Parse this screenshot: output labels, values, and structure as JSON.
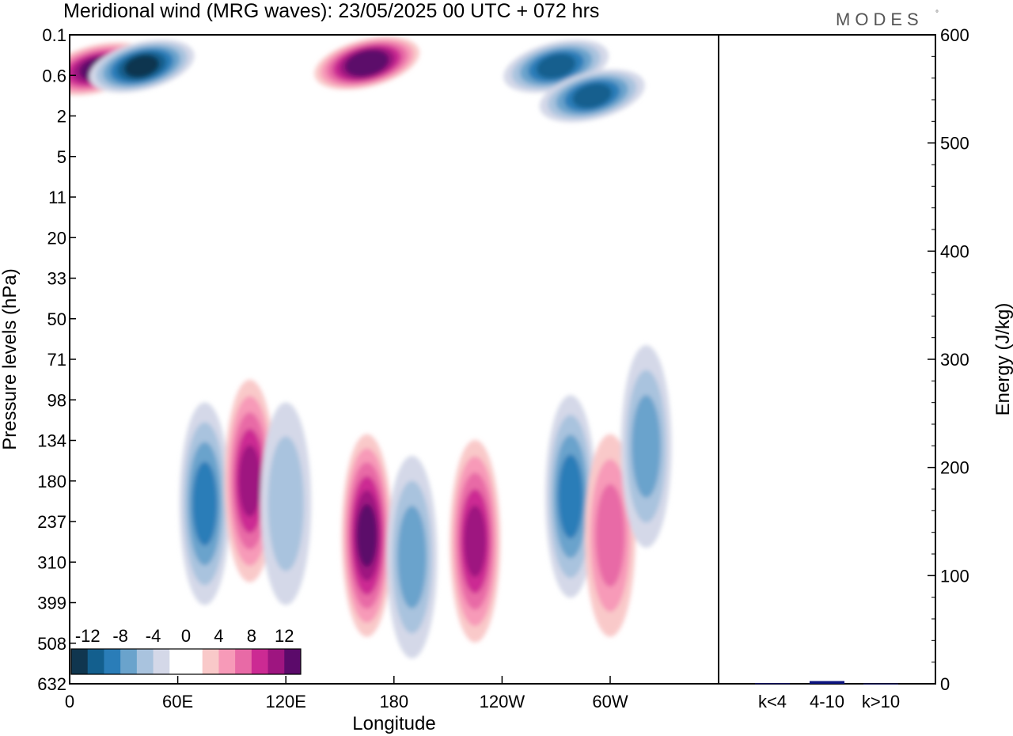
{
  "header": {
    "title": "Meridional wind (MRG waves):  23/05/2025  00 UTC  + 072 hrs",
    "brand": "MODES",
    "brand_mark": "°"
  },
  "chart_data": [
    {
      "type": "heatmap",
      "title": "Meridional wind (MRG waves):  23/05/2025  00 UTC  + 072 hrs",
      "xlabel": "Longitude",
      "ylabel": "Pressure levels (hPa)",
      "x_ticks": [
        "0",
        "60E",
        "120E",
        "180",
        "120W",
        "60W"
      ],
      "y_ticks": [
        "0.1",
        "0.6",
        "2",
        "5",
        "11",
        "20",
        "33",
        "50",
        "71",
        "98",
        "134",
        "180",
        "237",
        "310",
        "399",
        "508",
        "632"
      ],
      "colorbar_labels": [
        "-12",
        "-8",
        "-4",
        "0",
        "4",
        "8",
        "12"
      ],
      "colorbar_colors": [
        "#10364f",
        "#135f8e",
        "#2a7db8",
        "#6aa3cc",
        "#a9c3de",
        "#d4d8e8",
        "#ffffff",
        "#ffffff",
        "#f9c9c9",
        "#f79ab8",
        "#e86aa6",
        "#cc2a93",
        "#9e1580",
        "#5b0a6a"
      ],
      "features": [
        {
          "lon": 15,
          "p": 0.45,
          "value": 12
        },
        {
          "lon": 40,
          "p": 0.4,
          "value": -12
        },
        {
          "lon": 165,
          "p": 0.35,
          "value": 13
        },
        {
          "lon": 270,
          "p": 0.4,
          "value": -10
        },
        {
          "lon": 290,
          "p": 1.1,
          "value": -10
        },
        {
          "lon": 75,
          "p": 210,
          "value": -8
        },
        {
          "lon": 100,
          "p": 180,
          "value": 9
        },
        {
          "lon": 120,
          "p": 210,
          "value": -4
        },
        {
          "lon": 165,
          "p": 260,
          "value": 11
        },
        {
          "lon": 190,
          "p": 300,
          "value": -6
        },
        {
          "lon": 225,
          "p": 270,
          "value": 9
        },
        {
          "lon": 278,
          "p": 200,
          "value": -7
        },
        {
          "lon": 300,
          "p": 260,
          "value": 5
        },
        {
          "lon": 320,
          "p": 140,
          "value": -5
        }
      ]
    },
    {
      "type": "bar",
      "categories": [
        "k<4",
        "4-10",
        "k>10"
      ],
      "values": [
        0.5,
        2.5,
        0.3
      ],
      "ylabel": "Energy (J/kg)",
      "ylim": [
        0,
        600
      ],
      "y_ticks": [
        "0",
        "100",
        "200",
        "300",
        "400",
        "500",
        "600"
      ],
      "bar_color": "#0d1580"
    }
  ]
}
